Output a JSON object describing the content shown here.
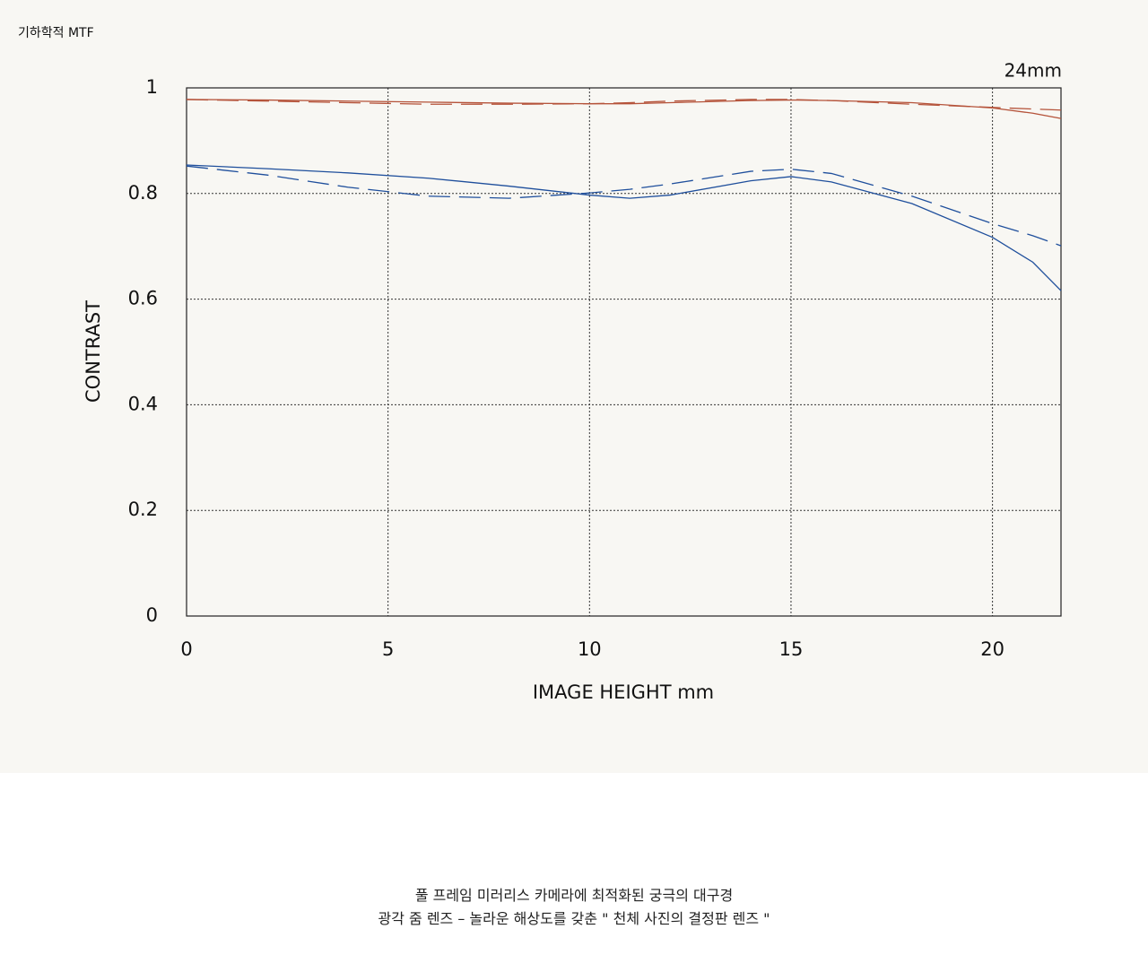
{
  "chart_data": {
    "type": "line",
    "title": "기하학적 MTF",
    "subtitle": "24mm",
    "x_label": "IMAGE HEIGHT  mm",
    "y_label": "CONTRAST",
    "x": [
      0,
      2,
      4,
      6,
      8,
      10,
      11,
      12,
      14,
      15,
      16,
      18,
      20,
      21,
      21.7
    ],
    "series": [
      {
        "color": "#b5533a",
        "dash": false,
        "values": [
          0.978,
          0.977,
          0.975,
          0.973,
          0.971,
          0.97,
          0.97,
          0.972,
          0.976,
          0.977,
          0.976,
          0.972,
          0.962,
          0.952,
          0.942
        ]
      },
      {
        "color": "#b5533a",
        "dash": true,
        "values": [
          0.978,
          0.975,
          0.972,
          0.969,
          0.969,
          0.97,
          0.972,
          0.975,
          0.978,
          0.978,
          0.976,
          0.969,
          0.963,
          0.96,
          0.958
        ]
      },
      {
        "color": "#1f4f9c",
        "dash": false,
        "values": [
          0.854,
          0.847,
          0.839,
          0.829,
          0.814,
          0.797,
          0.791,
          0.797,
          0.824,
          0.832,
          0.822,
          0.781,
          0.717,
          0.67,
          0.616
        ]
      },
      {
        "color": "#1f4f9c",
        "dash": true,
        "values": [
          0.852,
          0.835,
          0.812,
          0.795,
          0.791,
          0.801,
          0.808,
          0.818,
          0.842,
          0.846,
          0.838,
          0.795,
          0.743,
          0.72,
          0.701
        ]
      }
    ],
    "xlim": [
      0,
      21.7
    ],
    "xticks": [
      0,
      5,
      10,
      15,
      20
    ],
    "ylim": [
      0,
      1
    ],
    "yticks": [
      0,
      0.2,
      0.4,
      0.6,
      0.8,
      1
    ],
    "grid": true
  },
  "caption": {
    "lines": [
      "풀 프레임 미러리스 카메라에 최적화된 궁극의 대구경",
      "광각 줌 렌즈 – 놀라운 해상도를 갖춘 \" 천체 사진의 결정판 렌즈 \""
    ]
  }
}
